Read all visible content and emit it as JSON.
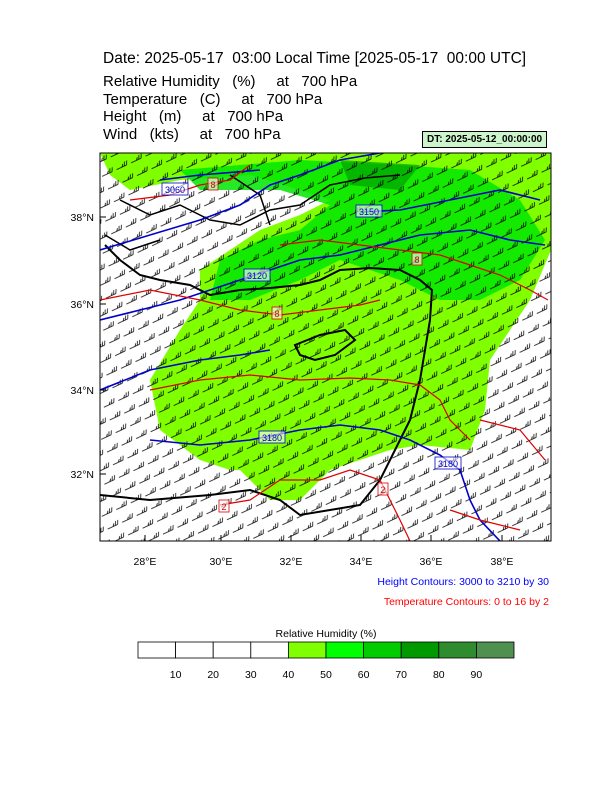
{
  "header": {
    "title": "Date: 2025-05-17  03:00 Local Time [2025-05-17  00:00 UTC]",
    "lines": [
      "Relative Humidity   (%)     at   700 hPa",
      "Temperature   (C)     at   700 hPa",
      "Height   (m)     at   700 hPa",
      "Wind   (kts)     at   700 hPa"
    ]
  },
  "timestamp": "DT: 2025-05-12_00:00:00",
  "map": {
    "x_labels": [
      "28°E",
      "30°E",
      "32°E",
      "34°E",
      "36°E",
      "38°E"
    ],
    "y_labels": [
      "38°N",
      "36°N",
      "34°N",
      "32°N"
    ],
    "height_labels": [
      "3060",
      "3150",
      "3120",
      "3180",
      "3180"
    ],
    "temp_labels": [
      "8",
      "8",
      "8",
      "2",
      "2"
    ]
  },
  "notes": [
    "Height Contours: 3000 to 3210 by 30",
    "Temperature Contours: 0 to 16 by 2"
  ],
  "colorbar": {
    "title": "Relative Humidity  (%)",
    "labels": [
      "10",
      "20",
      "30",
      "40",
      "50",
      "60",
      "70",
      "80",
      "90"
    ]
  }
}
